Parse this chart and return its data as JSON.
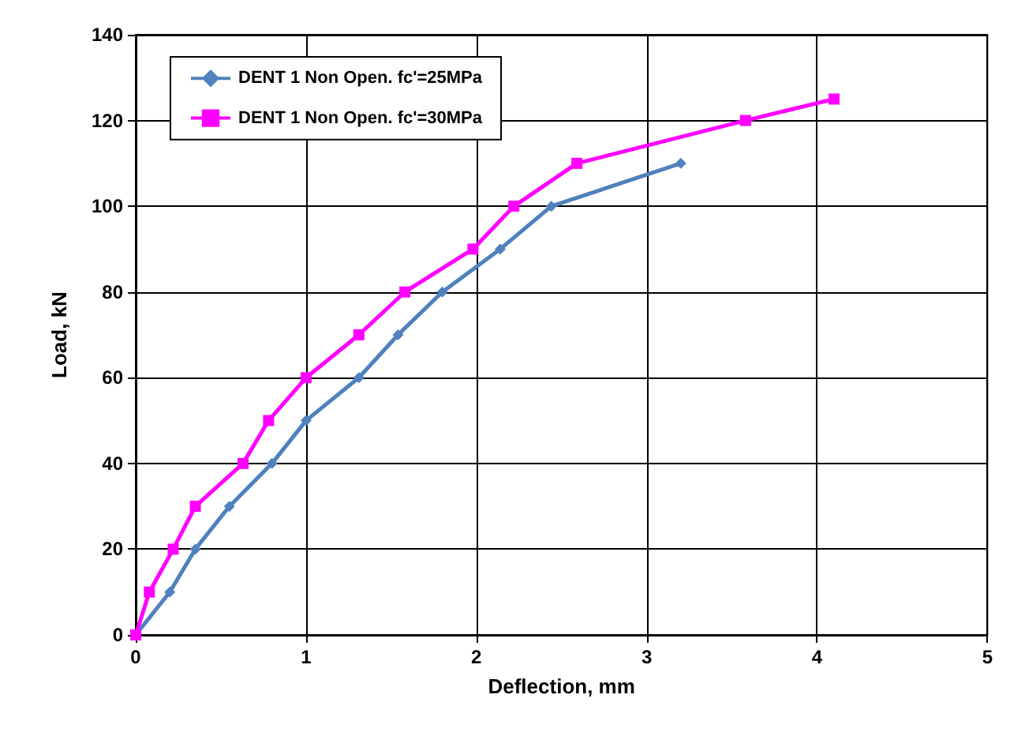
{
  "chart_data": {
    "type": "line",
    "xlabel": "Deflection, mm",
    "ylabel": "Load, kN",
    "xlim": [
      0,
      5
    ],
    "xticks": [
      0,
      1,
      2,
      3,
      4,
      5
    ],
    "ylim": [
      0,
      140
    ],
    "yticks": [
      0,
      20,
      40,
      60,
      80,
      100,
      120,
      140
    ],
    "grid": true,
    "legend": "top left",
    "series": [
      {
        "name": "DENT 1 Non Open. fc'=25MPa",
        "color": "#4f81bd",
        "marker": "diamond",
        "x": [
          0,
          0.2,
          0.35,
          0.55,
          0.8,
          1.0,
          1.31,
          1.54,
          1.8,
          2.14,
          2.44,
          3.2
        ],
        "values": [
          0,
          10,
          20,
          30,
          40,
          50,
          60,
          70,
          80,
          90,
          100,
          110
        ]
      },
      {
        "name": "DENT 1 Non Open. fc'=30MPa",
        "color": "#ff00ff",
        "marker": "square",
        "x": [
          0,
          0.08,
          0.22,
          0.35,
          0.63,
          0.78,
          1.0,
          1.31,
          1.58,
          1.98,
          2.22,
          2.59,
          3.58,
          4.1
        ],
        "values": [
          0,
          10,
          20,
          30,
          40,
          50,
          60,
          70,
          80,
          90,
          100,
          110,
          120,
          125
        ]
      }
    ]
  }
}
